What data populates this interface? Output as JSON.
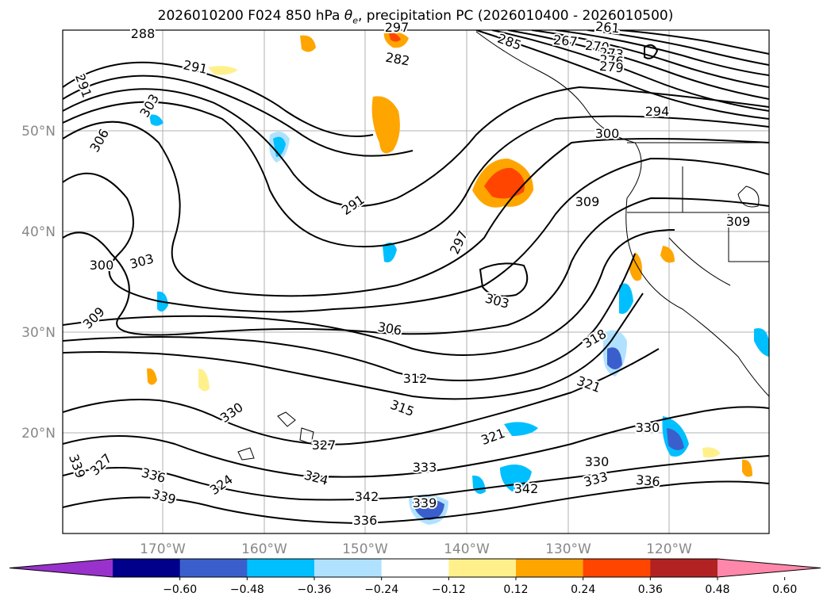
{
  "title_main": "2026010200 F024 850 hPa ",
  "title_theta": "θ",
  "title_sub": "e",
  "title_rest": ", precipitation PC (2026010400 - 2026010500)",
  "lat_labels": [
    "50°N",
    "40°N",
    "30°N",
    "20°N"
  ],
  "lon_labels": [
    "170°W",
    "160°W",
    "150°W",
    "140°W",
    "130°W",
    "120°W"
  ],
  "contour_labels": [
    "288",
    "291",
    "297",
    "267",
    "261",
    "270",
    "273",
    "276",
    "279",
    "282",
    "285",
    "291",
    "303",
    "306",
    "294",
    "300",
    "291",
    "309",
    "309",
    "297",
    "300",
    "303",
    "303",
    "306",
    "309",
    "312",
    "318",
    "321",
    "315",
    "321",
    "330",
    "330",
    "327",
    "324",
    "327",
    "324",
    "336",
    "339",
    "342",
    "336",
    "342",
    "330",
    "333",
    "336",
    "339",
    "333",
    "339"
  ],
  "colorbar": {
    "ticks": [
      "−0.60",
      "−0.48",
      "−0.36",
      "−0.24",
      "−0.12",
      "0.12",
      "0.24",
      "0.36",
      "0.48",
      "0.60"
    ],
    "colors": [
      "#9932cc",
      "#00008b",
      "#3a5fcd",
      "#00bfff",
      "#b0e2ff",
      "#ffffff",
      "#fff08c",
      "#ffa500",
      "#ff4500",
      "#b22222",
      "#ff88aa"
    ]
  }
}
